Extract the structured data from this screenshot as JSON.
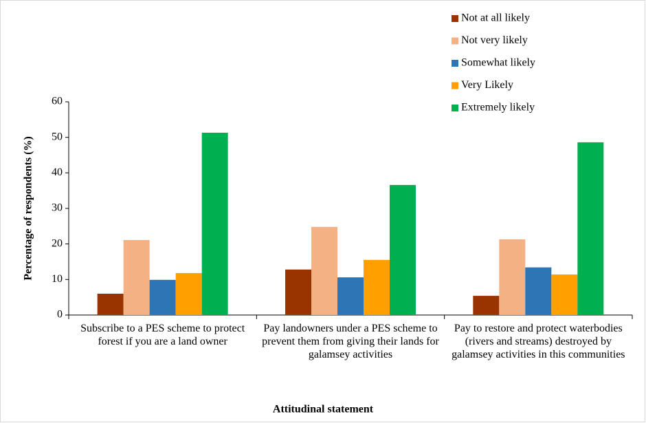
{
  "chart_data": {
    "type": "bar",
    "categories": [
      "Subscribe to a PES scheme to protect forest if you are a land owner",
      "Pay landowners under a PES scheme to prevent them from giving their lands for galamsey activities",
      "Pay to restore and protect waterbodies (rivers and streams) destroyed by galamsey activities in this communities"
    ],
    "series": [
      {
        "name": "Not at all likely",
        "color": "#993300",
        "values": [
          6.0,
          12.8,
          5.4
        ]
      },
      {
        "name": "Not very likely",
        "color": "#f4b183",
        "values": [
          21.1,
          24.8,
          21.3
        ]
      },
      {
        "name": "Somewhat likely",
        "color": "#2e75b6",
        "values": [
          9.9,
          10.6,
          13.4
        ]
      },
      {
        "name": "Very Likely",
        "color": "#ff9f00",
        "values": [
          11.8,
          15.5,
          11.4
        ]
      },
      {
        "name": "Extremely likely",
        "color": "#00b050",
        "values": [
          51.3,
          36.6,
          48.6
        ]
      }
    ],
    "xlabel": "Attitudinal statement",
    "ylabel": "Percentage of respondents (%)",
    "ylim": [
      0,
      60
    ],
    "yticks": [
      0,
      10,
      20,
      30,
      40,
      50,
      60
    ],
    "grid": false,
    "legend": "top-right"
  }
}
